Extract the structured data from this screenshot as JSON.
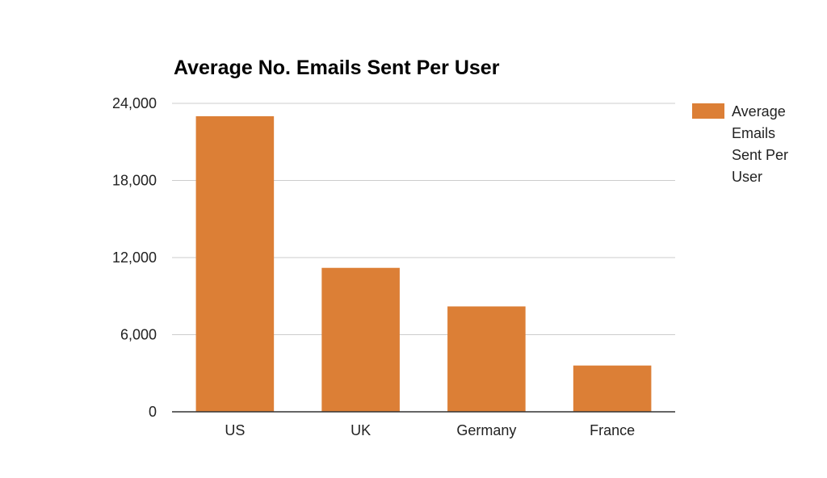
{
  "chart_data": {
    "type": "bar",
    "title": "Average No. Emails Sent Per User",
    "xlabel": "",
    "ylabel": "",
    "categories": [
      "US",
      "UK",
      "Germany",
      "France"
    ],
    "series": [
      {
        "name": "Average Emails Sent Per User",
        "values": [
          23000,
          11200,
          8200,
          3600
        ]
      }
    ],
    "ylim": [
      0,
      24000
    ],
    "yticks": [
      0,
      6000,
      12000,
      18000,
      24000
    ],
    "ytick_labels": [
      "0",
      "6,000",
      "12,000",
      "18,000",
      "24,000"
    ],
    "grid": true,
    "legend_position": "right",
    "colors": {
      "bar": "#dc7f36",
      "grid": "#cccccc",
      "axis": "#333333"
    }
  }
}
